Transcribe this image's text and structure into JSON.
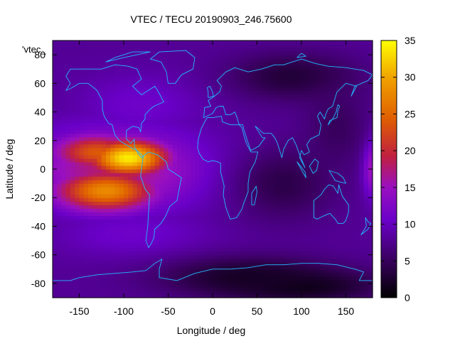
{
  "chart_data": {
    "type": "heatmap",
    "title": "VTEC / TECU 20190903_246.75600",
    "xlabel": "Longitude / deg",
    "ylabel": "Latitude / deg",
    "legend_label": "'vtec_",
    "xlim": [
      -180,
      180
    ],
    "ylim": [
      -90,
      90
    ],
    "xticks": [
      -150,
      -100,
      -50,
      0,
      50,
      100,
      150
    ],
    "yticks": [
      -80,
      -60,
      -40,
      -20,
      0,
      20,
      40,
      60,
      80
    ],
    "colorbar": {
      "min": 0,
      "max": 35,
      "ticks": [
        0,
        5,
        10,
        15,
        20,
        25,
        30,
        35
      ],
      "palette": "black-purple-red-orange-yellow"
    },
    "background_vtec": 8,
    "features": [
      {
        "name": "equatorial-anomaly-peak",
        "lon": -95,
        "lat": 8,
        "vtec": 34,
        "spread_lon": 32,
        "spread_lat": 9
      },
      {
        "name": "equatorial-anomaly-south",
        "lon": -120,
        "lat": -15,
        "vtec": 28,
        "spread_lon": 40,
        "spread_lat": 10
      },
      {
        "name": "equatorial-anomaly-north",
        "lon": -130,
        "lat": 12,
        "vtec": 24,
        "spread_lon": 35,
        "spread_lat": 9
      },
      {
        "name": "equatorial-band",
        "lon": -110,
        "lat": 0,
        "vtec": 18,
        "spread_lon": 70,
        "spread_lat": 20
      },
      {
        "name": "east-edge-band",
        "lon": 180,
        "lat": 2,
        "vtec": 17,
        "spread_lon": 8,
        "spread_lat": 14
      },
      {
        "name": "midlat-north-enhancement",
        "lon": -80,
        "lat": 45,
        "vtec": 11,
        "spread_lon": 50,
        "spread_lat": 15
      },
      {
        "name": "midlat-south-enhancement",
        "lon": -90,
        "lat": -45,
        "vtec": 11,
        "spread_lon": 60,
        "spread_lat": 12
      }
    ],
    "lows": [
      {
        "name": "antarctic-trough",
        "lon": 100,
        "lat": -82,
        "vtec": 1,
        "spread_lon": 60,
        "spread_lat": 8
      },
      {
        "name": "south-trough",
        "lon": 40,
        "lat": -75,
        "vtec": 2,
        "spread_lon": 70,
        "spread_lat": 10
      },
      {
        "name": "asia-north-low",
        "lon": 90,
        "lat": 65,
        "vtec": 3,
        "spread_lon": 50,
        "spread_lat": 12
      },
      {
        "name": "indian-ocean-low",
        "lon": 80,
        "lat": -10,
        "vtec": 4,
        "spread_lon": 40,
        "spread_lat": 18
      },
      {
        "name": "pacific-west-low",
        "lon": 140,
        "lat": 30,
        "vtec": 5,
        "spread_lon": 25,
        "spread_lat": 20
      }
    ]
  }
}
